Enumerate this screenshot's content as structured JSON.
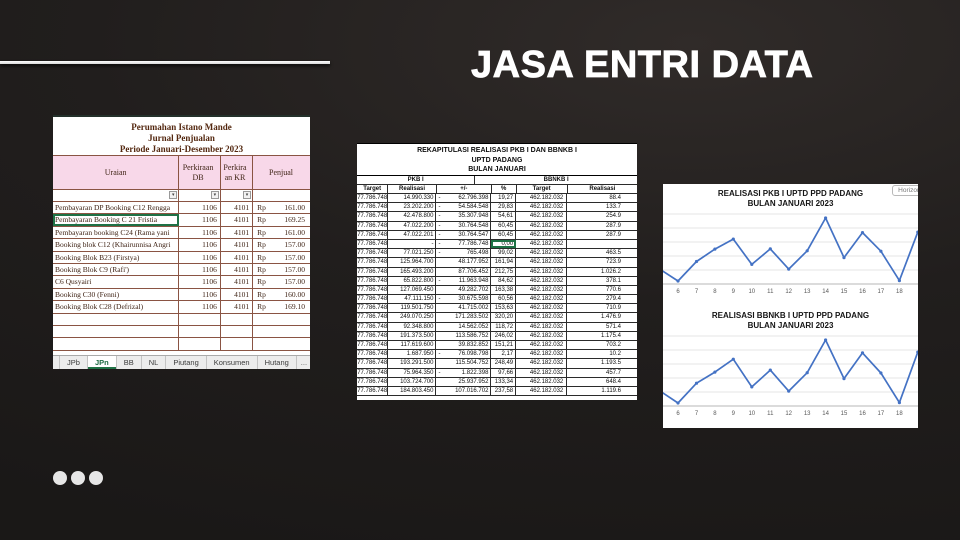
{
  "slide": {
    "title": "JASA ENTRI DATA",
    "background_color": "#211e1d",
    "accent_line_color": "#ffffff"
  },
  "jurnal": {
    "title_lines": [
      "Perumahan Istano Mande",
      "Jurnal Penjualan",
      "Periode Januari-Desember 2023"
    ],
    "columns": {
      "uraian": "Uraian",
      "perkiraan_db": "Perkiraan DB",
      "perkiraan_kr": "Perkira an KR",
      "penjualan": "Penjual"
    },
    "filter_icon": "dropdown-arrow",
    "currency": "Rp",
    "header_fill": "#f8d8e9",
    "grid_color": "#8a5443",
    "selection_color": "#1e7145",
    "rows": [
      {
        "uraian": "Pembayaran DP Booking C12 Rengga",
        "db": "1106",
        "kr": "4101",
        "amount": "161.00",
        "selected": false
      },
      {
        "uraian": "Pembayaran Booking C 21 Fristia",
        "db": "1106",
        "kr": "4101",
        "amount": "169.25",
        "selected": true
      },
      {
        "uraian": "Pembayaran booking C24 (Rama yani",
        "db": "1106",
        "kr": "4101",
        "amount": "161.00",
        "selected": false
      },
      {
        "uraian": "Booking blok C12 (Khairunnisa Angri",
        "db": "1106",
        "kr": "4101",
        "amount": "157.00",
        "selected": false
      },
      {
        "uraian": "Booking Blok B23 (Firstya)",
        "db": "1106",
        "kr": "4101",
        "amount": "157.00",
        "selected": false
      },
      {
        "uraian": "Booking Blok C9 (Rafi')",
        "db": "1106",
        "kr": "4101",
        "amount": "157.00",
        "selected": false
      },
      {
        "uraian": "C6 Qusyairi",
        "db": "1106",
        "kr": "4101",
        "amount": "157.00",
        "selected": false
      },
      {
        "uraian": "Booking C30 (Fenni)",
        "db": "1106",
        "kr": "4101",
        "amount": "160.00",
        "selected": false
      },
      {
        "uraian": "Booking Blok C28 (Defrizal)",
        "db": "1106",
        "kr": "4101",
        "amount": "169.10",
        "selected": false
      }
    ],
    "tabs": [
      "JPb",
      "JPn",
      "BB",
      "NL",
      "Piutang",
      "Konsumen",
      "Hutang"
    ],
    "active_tab": "JPn",
    "tab_overflow": "...",
    "add_sheet_label": "+"
  },
  "rekap": {
    "title_lines": [
      "REKAPITULASI REALISASI PKB I DAN BBNKB I",
      "UPTD PADANG",
      "BULAN JANUARI"
    ],
    "group_headers": [
      "PKB I",
      "BBNKB I"
    ],
    "column_headers": [
      "Target",
      "Realisasi",
      "+/-",
      "%",
      "Target",
      "Realisasi"
    ],
    "pkb_target": "77.786.748",
    "bbnkb_target": "462.182.032",
    "rows": [
      {
        "realisasi": "14.990.330",
        "sign": "-",
        "selisih": "62.796.398",
        "pct": "19,27",
        "bbnkb_realisasi": "88.4",
        "pct_selected": false
      },
      {
        "realisasi": "23.202.200",
        "sign": "-",
        "selisih": "54.584.548",
        "pct": "29,83",
        "bbnkb_realisasi": "133.7",
        "pct_selected": false
      },
      {
        "realisasi": "42.478.800",
        "sign": "-",
        "selisih": "35.307.948",
        "pct": "54,61",
        "bbnkb_realisasi": "254.9",
        "pct_selected": false
      },
      {
        "realisasi": "47.022.200",
        "sign": "-",
        "selisih": "30.764.548",
        "pct": "60,45",
        "bbnkb_realisasi": "287.9",
        "pct_selected": false
      },
      {
        "realisasi": "47.022.201",
        "sign": "-",
        "selisih": "30.764.547",
        "pct": "60,45",
        "bbnkb_realisasi": "287.9",
        "pct_selected": false
      },
      {
        "realisasi": "-",
        "sign": "-",
        "selisih": "77.786.748",
        "pct": "0,00",
        "bbnkb_realisasi": "",
        "pct_selected": true
      },
      {
        "realisasi": "77.021.250",
        "sign": "-",
        "selisih": "765.498",
        "pct": "99,02",
        "bbnkb_realisasi": "463.5",
        "pct_selected": false
      },
      {
        "realisasi": "125.964.700",
        "sign": "",
        "selisih": "48.177.952",
        "pct": "161,94",
        "bbnkb_realisasi": "723.9",
        "pct_selected": false
      },
      {
        "realisasi": "165.493.200",
        "sign": "",
        "selisih": "87.706.452",
        "pct": "212,75",
        "bbnkb_realisasi": "1.026.2",
        "pct_selected": false
      },
      {
        "realisasi": "65.822.800",
        "sign": "-",
        "selisih": "11.963.948",
        "pct": "84,62",
        "bbnkb_realisasi": "378.1",
        "pct_selected": false
      },
      {
        "realisasi": "127.069.450",
        "sign": "",
        "selisih": "49.282.702",
        "pct": "163,38",
        "bbnkb_realisasi": "770.6",
        "pct_selected": false
      },
      {
        "realisasi": "47.111.150",
        "sign": "-",
        "selisih": "30.675.598",
        "pct": "60,56",
        "bbnkb_realisasi": "279.4",
        "pct_selected": false
      },
      {
        "realisasi": "119.501.750",
        "sign": "",
        "selisih": "41.715.002",
        "pct": "153,63",
        "bbnkb_realisasi": "710.9",
        "pct_selected": false
      },
      {
        "realisasi": "249.070.250",
        "sign": "",
        "selisih": "171.283.502",
        "pct": "320,20",
        "bbnkb_realisasi": "1.476.9",
        "pct_selected": false
      },
      {
        "realisasi": "92.348.800",
        "sign": "",
        "selisih": "14.562.052",
        "pct": "118,72",
        "bbnkb_realisasi": "571.4",
        "pct_selected": false
      },
      {
        "realisasi": "191.373.500",
        "sign": "",
        "selisih": "113.586.752",
        "pct": "246,02",
        "bbnkb_realisasi": "1.175.4",
        "pct_selected": false
      },
      {
        "realisasi": "117.619.600",
        "sign": "",
        "selisih": "39.832.852",
        "pct": "151,21",
        "bbnkb_realisasi": "703.2",
        "pct_selected": false
      },
      {
        "realisasi": "1.687.950",
        "sign": "-",
        "selisih": "76.098.798",
        "pct": "2,17",
        "bbnkb_realisasi": "10.2",
        "pct_selected": false
      },
      {
        "realisasi": "193.291.500",
        "sign": "",
        "selisih": "115.504.752",
        "pct": "248,49",
        "bbnkb_realisasi": "1.193.5",
        "pct_selected": false
      },
      {
        "realisasi": "75.964.350",
        "sign": "-",
        "selisih": "1.822.398",
        "pct": "97,66",
        "bbnkb_realisasi": "457.7",
        "pct_selected": false
      },
      {
        "realisasi": "103.724.700",
        "sign": "",
        "selisih": "25.937.952",
        "pct": "133,34",
        "bbnkb_realisasi": "648.4",
        "pct_selected": false
      },
      {
        "realisasi": "184.803.450",
        "sign": "",
        "selisih": "107.016.702",
        "pct": "237,58",
        "bbnkb_realisasi": "1.119.6",
        "pct_selected": false
      }
    ]
  },
  "charts_panel": {
    "chip_label": "Horizonta",
    "chart1_title_line1": "REALISASI PKB I UPTD PPD PADANG",
    "chart1_title_line2": "BULAN JANUARI 2023",
    "chart2_title_line1": "REALISASI BBNKB I UPTD PPD PADANG",
    "chart2_title_line2": "BULAN JANUARI 2023",
    "line_color": "#4472c4",
    "gridline_color": "#dcdcdc"
  },
  "chart_data": [
    {
      "type": "line",
      "title": "REALISASI PKB I UPTD PPD PADANG BULAN JANUARI 2023",
      "series": [
        {
          "name": "Realisasi PKB I",
          "values": [
            47022201,
            0,
            77021250,
            125964700,
            165493200,
            65822800,
            127069450,
            47111150,
            119501750,
            249070250,
            92348800,
            191373500,
            117619600,
            1687950,
            193291500
          ]
        }
      ],
      "x": [
        5,
        6,
        7,
        8,
        9,
        10,
        11,
        12,
        13,
        14,
        15,
        16,
        17,
        18,
        19
      ],
      "x_tick_labels": [
        "6",
        "7",
        "8",
        "9",
        "10",
        "11",
        "12",
        "13",
        "14",
        "15",
        "16",
        "17",
        "18"
      ],
      "xlabel": "",
      "ylabel": "",
      "ylim": [
        0,
        260000000
      ],
      "grid": true,
      "legend": "none"
    },
    {
      "type": "line",
      "title": "REALISASI BBNKB I UPTD PPD PADANG BULAN JANUARI 2023",
      "series": [
        {
          "name": "Realisasi BBNKB I (juta)",
          "values": [
            287.9,
            0,
            463.5,
            723.9,
            1026.2,
            378.1,
            770.6,
            279.4,
            710.9,
            1476.9,
            571.4,
            1175.4,
            703.2,
            10.2,
            1193.5
          ]
        }
      ],
      "x": [
        5,
        6,
        7,
        8,
        9,
        10,
        11,
        12,
        13,
        14,
        15,
        16,
        17,
        18,
        19
      ],
      "x_tick_labels": [
        "6",
        "7",
        "8",
        "9",
        "10",
        "11",
        "12",
        "13",
        "14",
        "15",
        "16",
        "17",
        "18"
      ],
      "xlabel": "",
      "ylabel": "",
      "ylim": [
        0,
        1550
      ],
      "grid": true,
      "legend": "none"
    }
  ]
}
